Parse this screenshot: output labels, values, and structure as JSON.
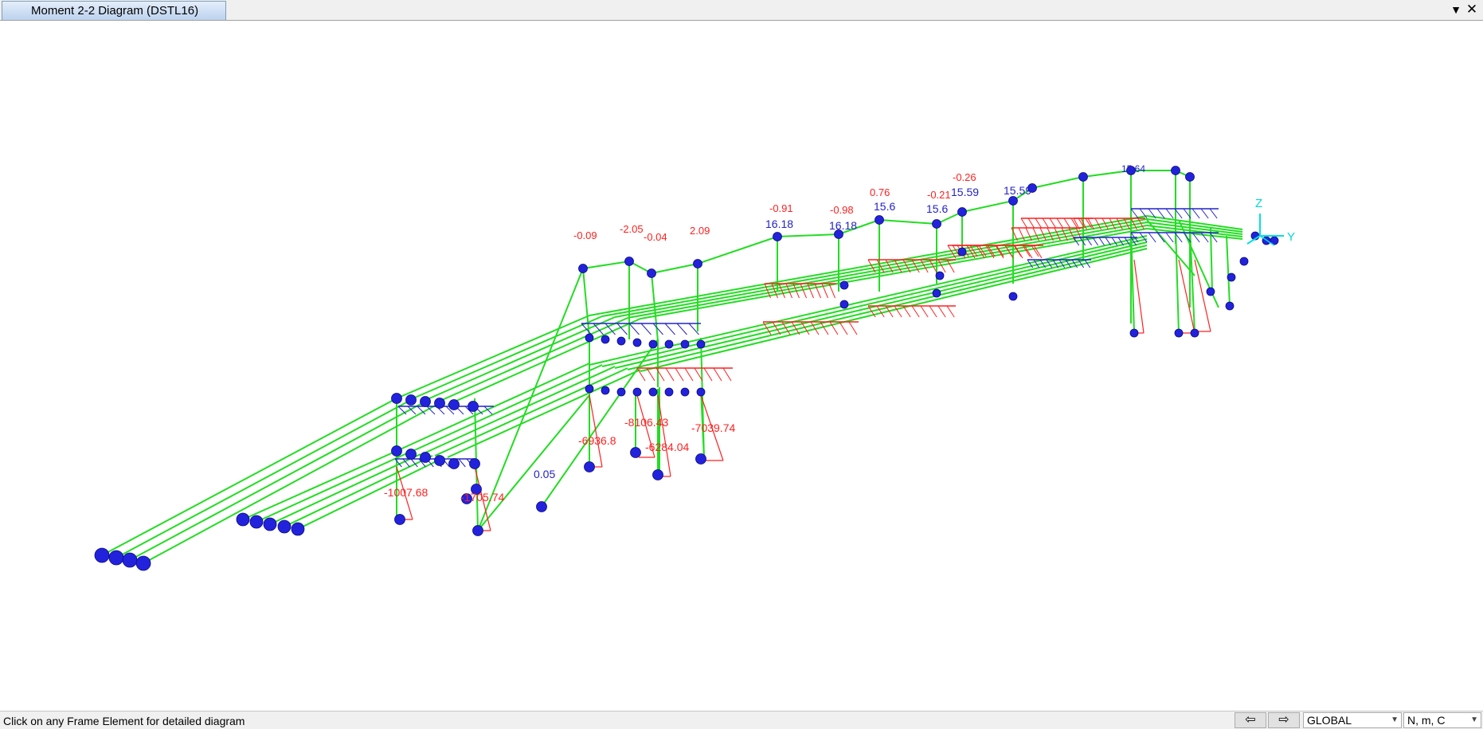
{
  "window": {
    "tab_title": "Moment 2-2 Diagram (DSTL16)"
  },
  "titlebar_icons": [
    "dropdown-arrow-icon",
    "close-icon"
  ],
  "viewport": {
    "axes": {
      "z_label": "Z",
      "y_label": "Y"
    },
    "blue_labels": [
      "0.05",
      "15.6",
      "16.18",
      "15.59",
      "15.64"
    ],
    "red_labels": [
      "-0.09",
      "-2.05",
      "-0.04",
      "2.09",
      "-0.91",
      "-0.98",
      "0.76",
      "-0.21",
      "-0.26",
      "-6936.8",
      "-8106.43",
      "-6284.04",
      "-7039.74",
      "-1007.68",
      "-1705.74"
    ],
    "colors": {
      "frame": "#22dd22",
      "joint": "#2222dd",
      "moment_positive": "#2323c8",
      "moment_negative": "#ff2020",
      "axis": "#00e0e0"
    }
  },
  "statusbar": {
    "message": "Click on any Frame Element for detailed diagram",
    "coord_system": "GLOBAL",
    "units": "N, m, C",
    "prev_icon": "arrow-left-icon",
    "next_icon": "arrow-right-icon"
  }
}
